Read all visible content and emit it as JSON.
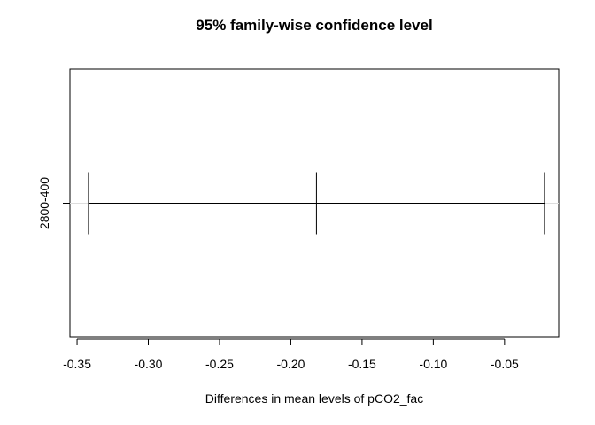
{
  "chart_data": {
    "type": "interval",
    "title": "95% family-wise confidence level",
    "xlabel": "Differences in mean levels of pCO2_fac",
    "ylabel": "",
    "xlim": [
      -0.355,
      -0.012
    ],
    "x_ticks": [
      -0.35,
      -0.3,
      -0.25,
      -0.2,
      -0.15,
      -0.1,
      -0.05
    ],
    "x_tick_labels": [
      "-0.35",
      "-0.30",
      "-0.25",
      "-0.20",
      "-0.15",
      "-0.10",
      "-0.05"
    ],
    "categories": [
      "2800-400"
    ],
    "intervals": [
      {
        "label": "2800-400",
        "lower": -0.342,
        "estimate": -0.182,
        "upper": -0.022
      }
    ],
    "reference_line": 0,
    "grid": false,
    "colors": {
      "line": "#000000",
      "reference": "#dddddd",
      "background": "#ffffff"
    }
  }
}
